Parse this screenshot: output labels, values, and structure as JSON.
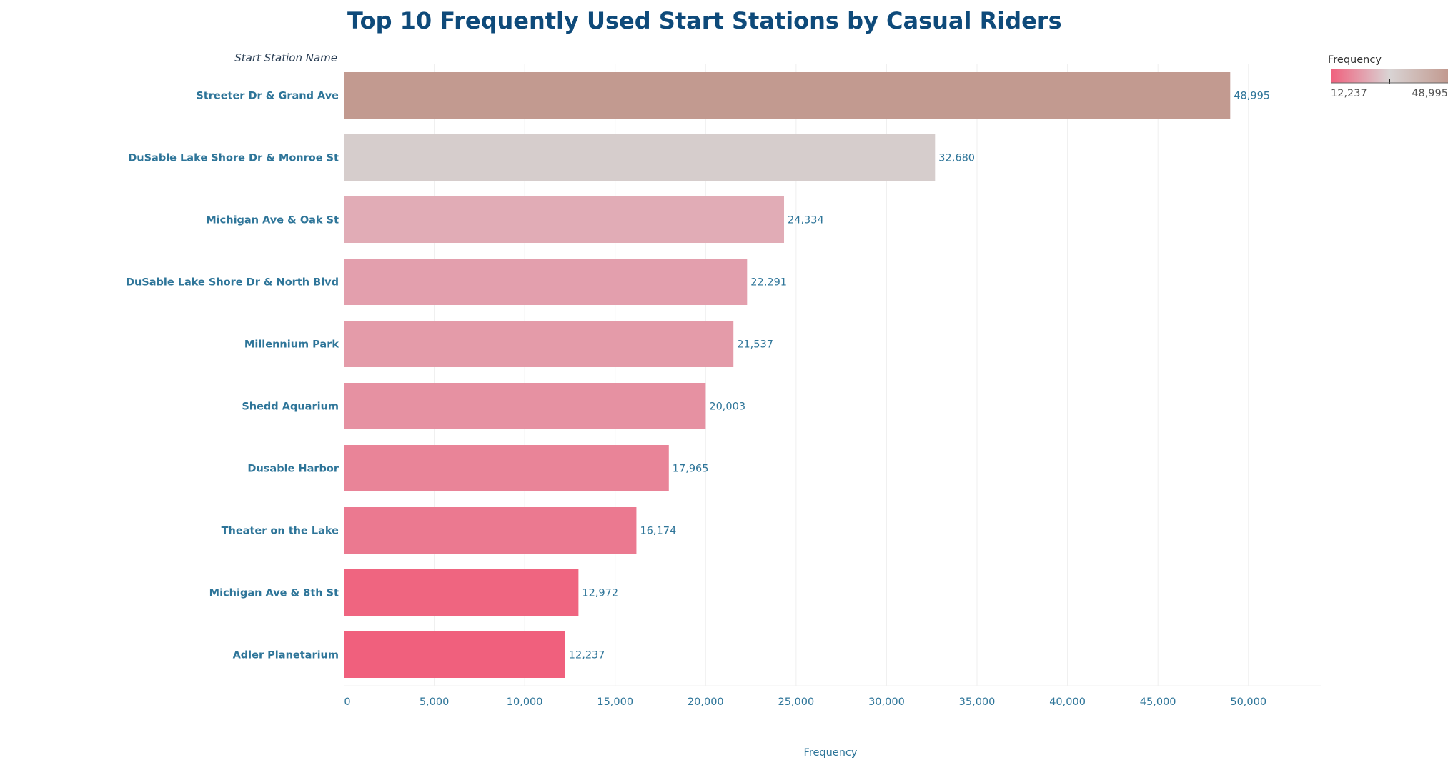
{
  "chart_data": {
    "type": "bar",
    "orientation": "horizontal",
    "title": "Top 10 Frequently Used Start Stations by Casual Riders",
    "row_header": "Start Station Name",
    "xlabel": "Frequency",
    "xlim": [
      0,
      54000
    ],
    "xticks": [
      0,
      5000,
      10000,
      15000,
      20000,
      25000,
      30000,
      35000,
      40000,
      45000,
      50000
    ],
    "xtick_labels": [
      "0",
      "5,000",
      "10,000",
      "15,000",
      "20,000",
      "25,000",
      "30,000",
      "35,000",
      "40,000",
      "45,000",
      "50,000"
    ],
    "grid": "vertical",
    "categories": [
      "Streeter Dr & Grand Ave",
      "DuSable Lake Shore Dr & Monroe St",
      "Michigan Ave & Oak St",
      "DuSable Lake Shore Dr & North Blvd",
      "Millennium Park",
      "Shedd Aquarium",
      "Dusable Harbor",
      "Theater on the Lake",
      "Michigan Ave & 8th St",
      "Adler Planetarium"
    ],
    "values": [
      48995,
      32680,
      24334,
      22291,
      21537,
      20003,
      17965,
      16174,
      12972,
      12237
    ],
    "value_labels": [
      "48,995",
      "32,680",
      "24,334",
      "22,291",
      "21,537",
      "20,003",
      "17,965",
      "16,174",
      "12,972",
      "12,237"
    ],
    "color_scale": {
      "title": "Frequency",
      "min": 12237,
      "max": 48995,
      "min_label": "12,237",
      "max_label": "48,995",
      "low_color": "#f0607d",
      "mid_color": "#d9d4d4",
      "high_color": "#c29a90",
      "legend_position": "top-right"
    }
  }
}
